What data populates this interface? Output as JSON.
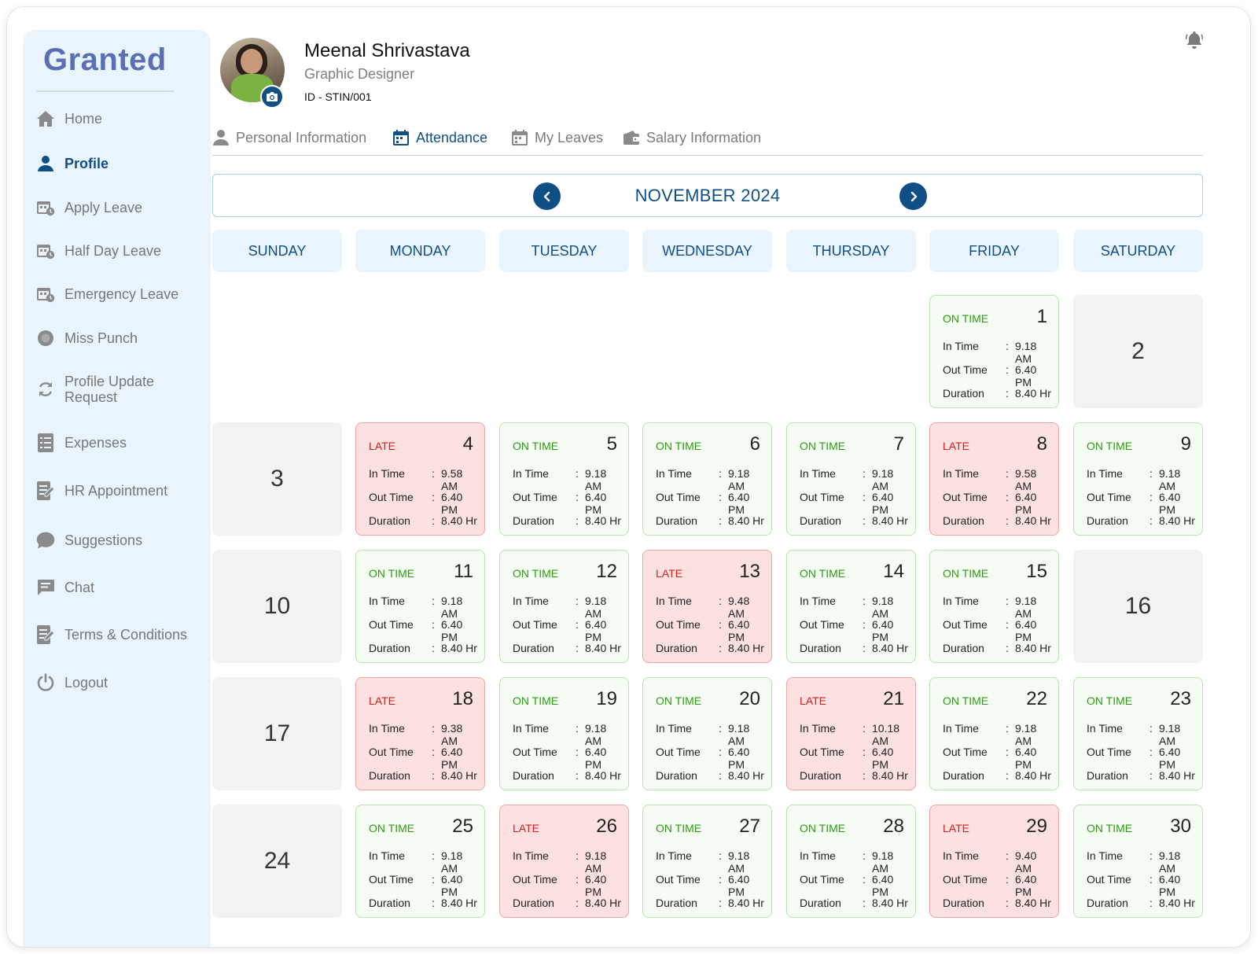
{
  "app": {
    "logo": "Granted"
  },
  "sidebar": {
    "items": [
      {
        "label": "Home",
        "icon": "home-icon",
        "active": false
      },
      {
        "label": "Profile",
        "icon": "user-icon",
        "active": true
      },
      {
        "label": "Apply Leave",
        "icon": "calendar-clock-icon",
        "active": false
      },
      {
        "label": "Half Day Leave",
        "icon": "calendar-clock-icon",
        "active": false
      },
      {
        "label": "Emergency Leave",
        "icon": "calendar-clock-icon",
        "active": false
      },
      {
        "label": "Miss Punch",
        "icon": "record-icon",
        "active": false
      },
      {
        "label": "Profile Update Request",
        "icon": "refresh-icon",
        "active": false
      },
      {
        "label": "Expenses",
        "icon": "list-icon",
        "active": false
      },
      {
        "label": "HR Appointment",
        "icon": "document-edit-icon",
        "active": false
      },
      {
        "label": "Suggestions",
        "icon": "speech-bubble-icon",
        "active": false
      },
      {
        "label": "Chat",
        "icon": "chat-icon",
        "active": false
      },
      {
        "label": "Terms & Conditions",
        "icon": "document-edit-icon",
        "active": false
      },
      {
        "label": "Logout",
        "icon": "power-icon",
        "active": false
      }
    ]
  },
  "profile": {
    "name": "Meenal Shrivastava",
    "role": "Graphic Designer",
    "id": "ID - STIN/001"
  },
  "tabs": [
    {
      "label": "Personal Information",
      "icon": "user-icon",
      "active": false
    },
    {
      "label": "Attendance",
      "icon": "calendar-icon",
      "active": true
    },
    {
      "label": "My Leaves",
      "icon": "calendar-icon",
      "active": false
    },
    {
      "label": "Salary Information",
      "icon": "wallet-icon",
      "active": false
    }
  ],
  "calendar": {
    "month_label": "NOVEMBER 2024",
    "weekdays": [
      "SUNDAY",
      "MONDAY",
      "TUESDAY",
      "WEDNESDAY",
      "THURSDAY",
      "FRIDAY",
      "SATURDAY"
    ],
    "field_labels": {
      "in": "In Time",
      "out": "Out Time",
      "duration": "Duration",
      "sep": ":"
    },
    "status_labels": {
      "ontime": "ON TIME",
      "late": "LATE"
    },
    "days": [
      {
        "day": "1",
        "status": "ontime",
        "in": "9.18 AM",
        "out": "6.40 PM",
        "duration": "8.40 Hr"
      },
      {
        "day": "2",
        "status": "off"
      },
      {
        "day": "3",
        "status": "off"
      },
      {
        "day": "4",
        "status": "late",
        "in": "9.58 AM",
        "out": "6.40 PM",
        "duration": "8.40 Hr"
      },
      {
        "day": "5",
        "status": "ontime",
        "in": "9.18 AM",
        "out": "6.40 PM",
        "duration": "8.40 Hr"
      },
      {
        "day": "6",
        "status": "ontime",
        "in": "9.18 AM",
        "out": "6.40 PM",
        "duration": "8.40 Hr"
      },
      {
        "day": "7",
        "status": "ontime",
        "in": "9.18 AM",
        "out": "6.40 PM",
        "duration": "8.40 Hr"
      },
      {
        "day": "8",
        "status": "late",
        "in": "9.58 AM",
        "out": "6.40 PM",
        "duration": "8.40 Hr"
      },
      {
        "day": "9",
        "status": "ontime",
        "in": "9.18 AM",
        "out": "6.40 PM",
        "duration": "8.40 Hr"
      },
      {
        "day": "10",
        "status": "off"
      },
      {
        "day": "11",
        "status": "ontime",
        "in": "9.18 AM",
        "out": "6.40 PM",
        "duration": "8.40 Hr"
      },
      {
        "day": "12",
        "status": "ontime",
        "in": "9.18 AM",
        "out": "6.40 PM",
        "duration": "8.40 Hr"
      },
      {
        "day": "13",
        "status": "late",
        "in": "9.48 AM",
        "out": "6.40 PM",
        "duration": "8.40 Hr"
      },
      {
        "day": "14",
        "status": "ontime",
        "in": "9.18 AM",
        "out": "6.40 PM",
        "duration": "8.40 Hr"
      },
      {
        "day": "15",
        "status": "ontime",
        "in": "9.18 AM",
        "out": "6.40 PM",
        "duration": "8.40 Hr"
      },
      {
        "day": "16",
        "status": "off"
      },
      {
        "day": "17",
        "status": "off"
      },
      {
        "day": "18",
        "status": "late",
        "in": "9.38 AM",
        "out": "6.40 PM",
        "duration": "8.40 Hr"
      },
      {
        "day": "19",
        "status": "ontime",
        "in": "9.18 AM",
        "out": "6.40 PM",
        "duration": "8.40 Hr"
      },
      {
        "day": "20",
        "status": "ontime",
        "in": "9.18 AM",
        "out": "6.40 PM",
        "duration": "8.40 Hr"
      },
      {
        "day": "21",
        "status": "late",
        "in": "10.18 AM",
        "out": "6.40 PM",
        "duration": "8.40 Hr"
      },
      {
        "day": "22",
        "status": "ontime",
        "in": "9.18 AM",
        "out": "6.40 PM",
        "duration": "8.40 Hr"
      },
      {
        "day": "23",
        "status": "ontime",
        "in": "9.18 AM",
        "out": "6.40 PM",
        "duration": "8.40 Hr"
      },
      {
        "day": "24",
        "status": "off"
      },
      {
        "day": "25",
        "status": "ontime",
        "in": "9.18 AM",
        "out": "6.40 PM",
        "duration": "8.40 Hr"
      },
      {
        "day": "26",
        "status": "late",
        "in": "9.18 AM",
        "out": "6.40 PM",
        "duration": "8.40 Hr"
      },
      {
        "day": "27",
        "status": "ontime",
        "in": "9.18 AM",
        "out": "6.40 PM",
        "duration": "8.40 Hr"
      },
      {
        "day": "28",
        "status": "ontime",
        "in": "9.18 AM",
        "out": "6.40 PM",
        "duration": "8.40 Hr"
      },
      {
        "day": "29",
        "status": "late",
        "in": "9.40 AM",
        "out": "6.40 PM",
        "duration": "8.40 Hr"
      },
      {
        "day": "30",
        "status": "ontime",
        "in": "9.18 AM",
        "out": "6.40 PM",
        "duration": "8.40 Hr"
      }
    ]
  },
  "colors": {
    "primary": "#0f4f86",
    "sidebar_bg": "#eaf4fd",
    "ontime_text": "#2e9b12",
    "late_text": "#d91d1d",
    "late_bg": "#fde0e0",
    "ontime_bg": "#f5fcf3"
  }
}
